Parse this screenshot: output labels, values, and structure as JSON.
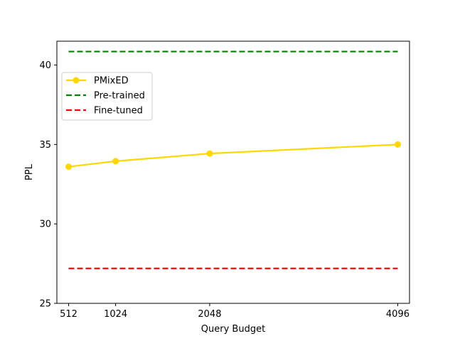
{
  "chart_data": {
    "type": "line",
    "xlabel": "Query Budget",
    "ylabel": "PPL",
    "xlim": [
      384,
      4224
    ],
    "ylim": [
      25,
      41.5
    ],
    "x_ticks": [
      512,
      1024,
      2048,
      4096
    ],
    "x_tick_labels": [
      "512",
      "1024",
      "2048",
      "4096"
    ],
    "y_ticks": [
      25,
      30,
      35,
      40
    ],
    "y_tick_labels": [
      "25",
      "30",
      "35",
      "40"
    ],
    "grid": false,
    "legend_position": "upper-left",
    "series": [
      {
        "name": "PMixED",
        "color": "#FFD700",
        "style": "solid",
        "marker": "circle",
        "x": [
          512,
          1024,
          2048,
          4096
        ],
        "y": [
          33.6,
          33.95,
          34.43,
          35.0
        ]
      },
      {
        "name": "Pre-trained",
        "color": "#008000",
        "style": "dashed",
        "x": [
          512,
          4096
        ],
        "y": [
          40.85,
          40.85
        ]
      },
      {
        "name": "Fine-tuned",
        "color": "#FF0000",
        "style": "dashed",
        "x": [
          512,
          4096
        ],
        "y": [
          27.2,
          27.2
        ]
      }
    ]
  }
}
